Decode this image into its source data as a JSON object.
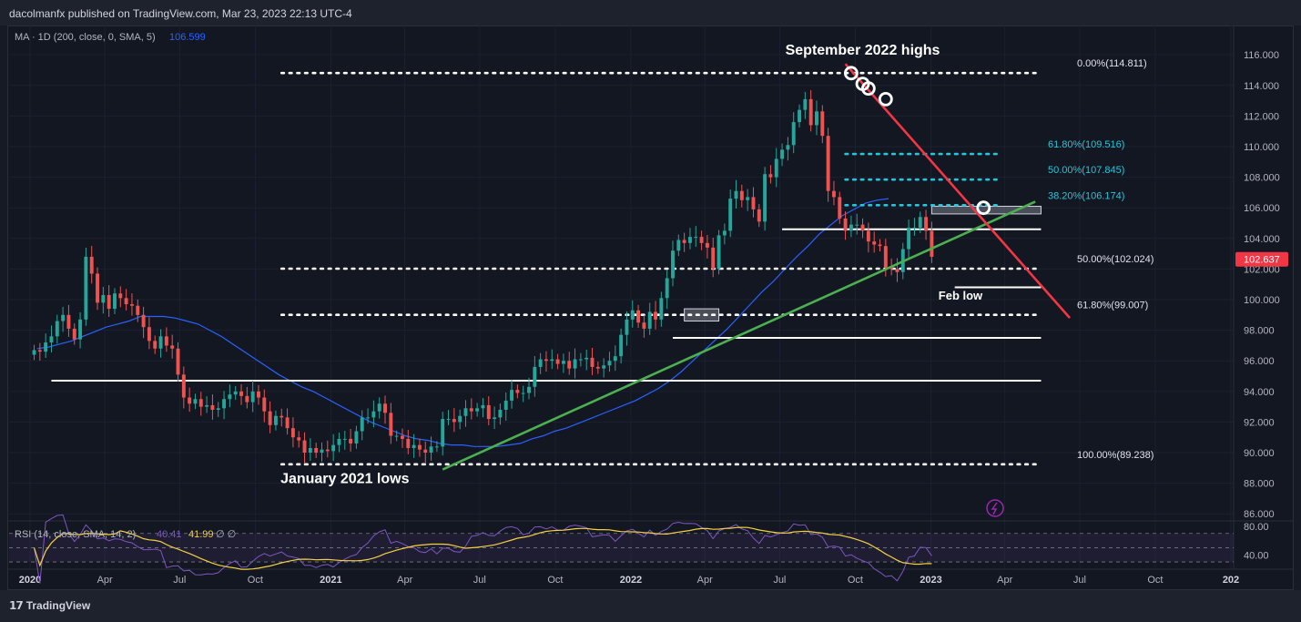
{
  "header": {
    "published_text": "dacolmanfx published on TradingView.com, Mar 23, 2023 22:13 UTC-4"
  },
  "footer": {
    "brand": "TradingView"
  },
  "colors": {
    "background": "#131722",
    "up": "#26a69a",
    "down": "#ef5350",
    "ma_line": "#2962ff",
    "trend_green": "#4caf50",
    "trend_red": "#f23645",
    "fib_teal": "#26c6da",
    "rsi_line": "#7e57c2",
    "rsi_ma": "#f5d142",
    "price_badge": "#f23645"
  },
  "chart_data": {
    "type": "candlestick",
    "symbol_scale": "linear",
    "indicator_label": "MA · 1D (200, close, 0, SMA, 5)",
    "indicator_value": "106.599",
    "y_ticks": [
      "116.000",
      "114.000",
      "112.000",
      "110.000",
      "108.000",
      "106.000",
      "104.000",
      "102.000",
      "100.000",
      "98.000",
      "96.000",
      "94.000",
      "92.000",
      "90.000",
      "88.000",
      "86.000"
    ],
    "ylim": [
      85.3,
      117.2
    ],
    "x_ticks": [
      {
        "label": "2020",
        "bold": true,
        "date": "2020-01-01"
      },
      {
        "label": "Apr",
        "bold": false,
        "date": "2020-04-01"
      },
      {
        "label": "Jul",
        "bold": false,
        "date": "2020-07-01"
      },
      {
        "label": "Oct",
        "bold": false,
        "date": "2020-10-01"
      },
      {
        "label": "2021",
        "bold": true,
        "date": "2021-01-01"
      },
      {
        "label": "Apr",
        "bold": false,
        "date": "2021-04-01"
      },
      {
        "label": "Jul",
        "bold": false,
        "date": "2021-07-01"
      },
      {
        "label": "Oct",
        "bold": false,
        "date": "2021-10-01"
      },
      {
        "label": "2022",
        "bold": true,
        "date": "2022-01-01"
      },
      {
        "label": "Apr",
        "bold": false,
        "date": "2022-04-01"
      },
      {
        "label": "Jul",
        "bold": false,
        "date": "2022-07-01"
      },
      {
        "label": "Oct",
        "bold": false,
        "date": "2022-10-01"
      },
      {
        "label": "2023",
        "bold": true,
        "date": "2023-01-01"
      },
      {
        "label": "Apr",
        "bold": false,
        "date": "2023-04-01"
      },
      {
        "label": "Jul",
        "bold": false,
        "date": "2023-07-01"
      },
      {
        "label": "Oct",
        "bold": false,
        "date": "2023-10-01"
      },
      {
        "label": "202",
        "bold": true,
        "date": "2024-01-01"
      }
    ],
    "weekly_closes": [
      96.7,
      96.6,
      97.2,
      97.6,
      98.6,
      99.0,
      98.1,
      97.4,
      98.7,
      102.8,
      101.7,
      99.8,
      100.3,
      99.4,
      100.4,
      100.1,
      99.7,
      99.6,
      99.0,
      98.2,
      97.3,
      96.8,
      97.6,
      97.0,
      96.8,
      95.1,
      93.6,
      93.2,
      93.5,
      93.0,
      93.1,
      92.8,
      92.9,
      93.5,
      93.8,
      94.0,
      93.7,
      93.3,
      94.0,
      93.6,
      92.7,
      91.8,
      92.4,
      92.3,
      91.6,
      91.0,
      90.8,
      90.0,
      90.3,
      90.0,
      90.2,
      90.1,
      90.5,
      90.9,
      90.9,
      90.6,
      91.4,
      92.3,
      92.3,
      92.7,
      93.2,
      92.6,
      91.1,
      91.1,
      90.9,
      90.3,
      90.5,
      90.2,
      90.0,
      90.4,
      90.4,
      92.2,
      92.2,
      92.0,
      92.4,
      92.9,
      92.7,
      92.9,
      93.1,
      92.2,
      92.3,
      92.8,
      93.4,
      94.1,
      93.9,
      93.9,
      94.3,
      95.6,
      96.1,
      96.0,
      96.1,
      95.8,
      96.0,
      95.5,
      96.1,
      96.1,
      96.2,
      95.6,
      95.5,
      95.7,
      96.0,
      96.3,
      97.7,
      98.7,
      99.3,
      98.5,
      98.1,
      99.2,
      98.7,
      100.1,
      101.4,
      103.2,
      103.9,
      103.7,
      104.1,
      104.1,
      103.7,
      103.4,
      102.0,
      104.2,
      104.5,
      106.6,
      107.1,
      106.5,
      106.7,
      105.9,
      105.1,
      108.2,
      108.0,
      109.2,
      109.8,
      110.1,
      111.6,
      112.4,
      113.1,
      111.4,
      112.3,
      110.7,
      107.1,
      106.7,
      105.3,
      104.5,
      104.9,
      104.9,
      104.5,
      103.8,
      103.6,
      103.5,
      102.1,
      102.0,
      101.8,
      103.3,
      104.7,
      104.7,
      105.4,
      104.5,
      102.8
    ],
    "sma_200_weekly": [
      96.8,
      96.9,
      97.1,
      97.3,
      97.6,
      97.9,
      98.2,
      98.4,
      98.6,
      98.9,
      98.9,
      98.9,
      98.8,
      98.6,
      98.4,
      98.0,
      97.6,
      97.1,
      96.6,
      96.1,
      95.6,
      95.1,
      94.7,
      94.3,
      94.0,
      93.6,
      93.2,
      92.8,
      92.4,
      92.0,
      91.7,
      91.4,
      91.1,
      90.9,
      90.8,
      90.6,
      90.5,
      90.5,
      90.4,
      90.4,
      90.4,
      90.5,
      90.6,
      90.9,
      91.1,
      91.4,
      91.6,
      91.9,
      92.2,
      92.5,
      92.8,
      93.1,
      93.4,
      93.8,
      94.2,
      94.7,
      95.3,
      96.0,
      96.7,
      97.4,
      98.1,
      98.9,
      99.7,
      100.5,
      101.2,
      102.0,
      102.8,
      103.5,
      104.3,
      104.9,
      105.5,
      105.9,
      106.3,
      106.5,
      106.6
    ],
    "horizontal_levels": [
      {
        "price": 114.811,
        "label": "0.00%(114.811)",
        "style": "dotted",
        "color": "#ffffff",
        "from": "2020-11-02",
        "to": "2023-05-15"
      },
      {
        "price": 109.516,
        "label": "61.80%(109.516)",
        "style": "dotted",
        "color": "#26c6da",
        "from": "2022-09-19",
        "to": "2023-03-27"
      },
      {
        "price": 107.845,
        "label": "50.00%(107.845)",
        "style": "dotted",
        "color": "#26c6da",
        "from": "2022-09-19",
        "to": "2023-03-27"
      },
      {
        "price": 106.174,
        "label": "38.20%(106.174)",
        "style": "dotted",
        "color": "#26c6da",
        "from": "2022-09-19",
        "to": "2023-03-27"
      },
      {
        "price": 102.024,
        "label": "50.00%(102.024)",
        "style": "dotted",
        "color": "#ffffff",
        "from": "2020-11-02",
        "to": "2023-05-15"
      },
      {
        "price": 99.007,
        "label": "61.80%(99.007)",
        "style": "dotted",
        "color": "#ffffff",
        "from": "2020-11-02",
        "to": "2023-05-15"
      },
      {
        "price": 89.238,
        "label": "100.00%(89.238)",
        "style": "dotted",
        "color": "#ffffff",
        "from": "2020-11-02",
        "to": "2023-05-15"
      },
      {
        "price": 104.6,
        "label": "",
        "style": "solid",
        "color": "#ffffff",
        "from": "2022-07-04",
        "to": "2023-05-15"
      },
      {
        "price": 100.8,
        "label": "",
        "style": "solid",
        "color": "#ffffff",
        "from": "2023-01-30",
        "to": "2023-05-15"
      },
      {
        "price": 97.5,
        "label": "",
        "style": "solid",
        "color": "#ffffff",
        "from": "2022-02-21",
        "to": "2023-05-15"
      },
      {
        "price": 94.7,
        "label": "",
        "style": "solid",
        "color": "#ffffff",
        "from": "2020-01-27",
        "to": "2023-05-15"
      }
    ],
    "zones": [
      {
        "from": "2023-01-02",
        "to": "2023-05-15",
        "low": 105.6,
        "high": 106.1
      },
      {
        "from": "2022-03-07",
        "to": "2022-04-18",
        "low": 98.6,
        "high": 99.4
      }
    ],
    "trendlines": [
      {
        "name": "green",
        "points": [
          {
            "date": "2021-05-17",
            "price": 88.9
          },
          {
            "date": "2023-05-08",
            "price": 106.4
          }
        ]
      },
      {
        "name": "red",
        "points": [
          {
            "date": "2022-09-19",
            "price": 115.4
          },
          {
            "date": "2023-06-19",
            "price": 98.8
          }
        ]
      }
    ],
    "markers": [
      {
        "date": "2022-09-26",
        "price": 114.8
      },
      {
        "date": "2022-10-10",
        "price": 114.1
      },
      {
        "date": "2022-10-17",
        "price": 113.8
      },
      {
        "date": "2022-11-07",
        "price": 113.1
      },
      {
        "date": "2023-03-06",
        "price": 106.0
      }
    ],
    "annotations": [
      {
        "text": "September 2022 highs",
        "date": "2022-10-10",
        "price": 116.0
      },
      {
        "text": "January 2021 lows",
        "date": "2021-01-18",
        "price": 88.0
      },
      {
        "text": "Feb low",
        "date": "2023-02-06",
        "price": 100.0
      }
    ],
    "last_price": "102.637",
    "rsi": {
      "label": "RSI (14, close, SMA, 14, 2)",
      "value_rsi": "40.41",
      "value_ma": "41.99",
      "value_tail": "∅  ∅",
      "ticks": [
        "80.00",
        "40.00"
      ],
      "ylim": [
        25,
        85
      ],
      "bands": [
        70,
        50,
        30
      ]
    }
  }
}
